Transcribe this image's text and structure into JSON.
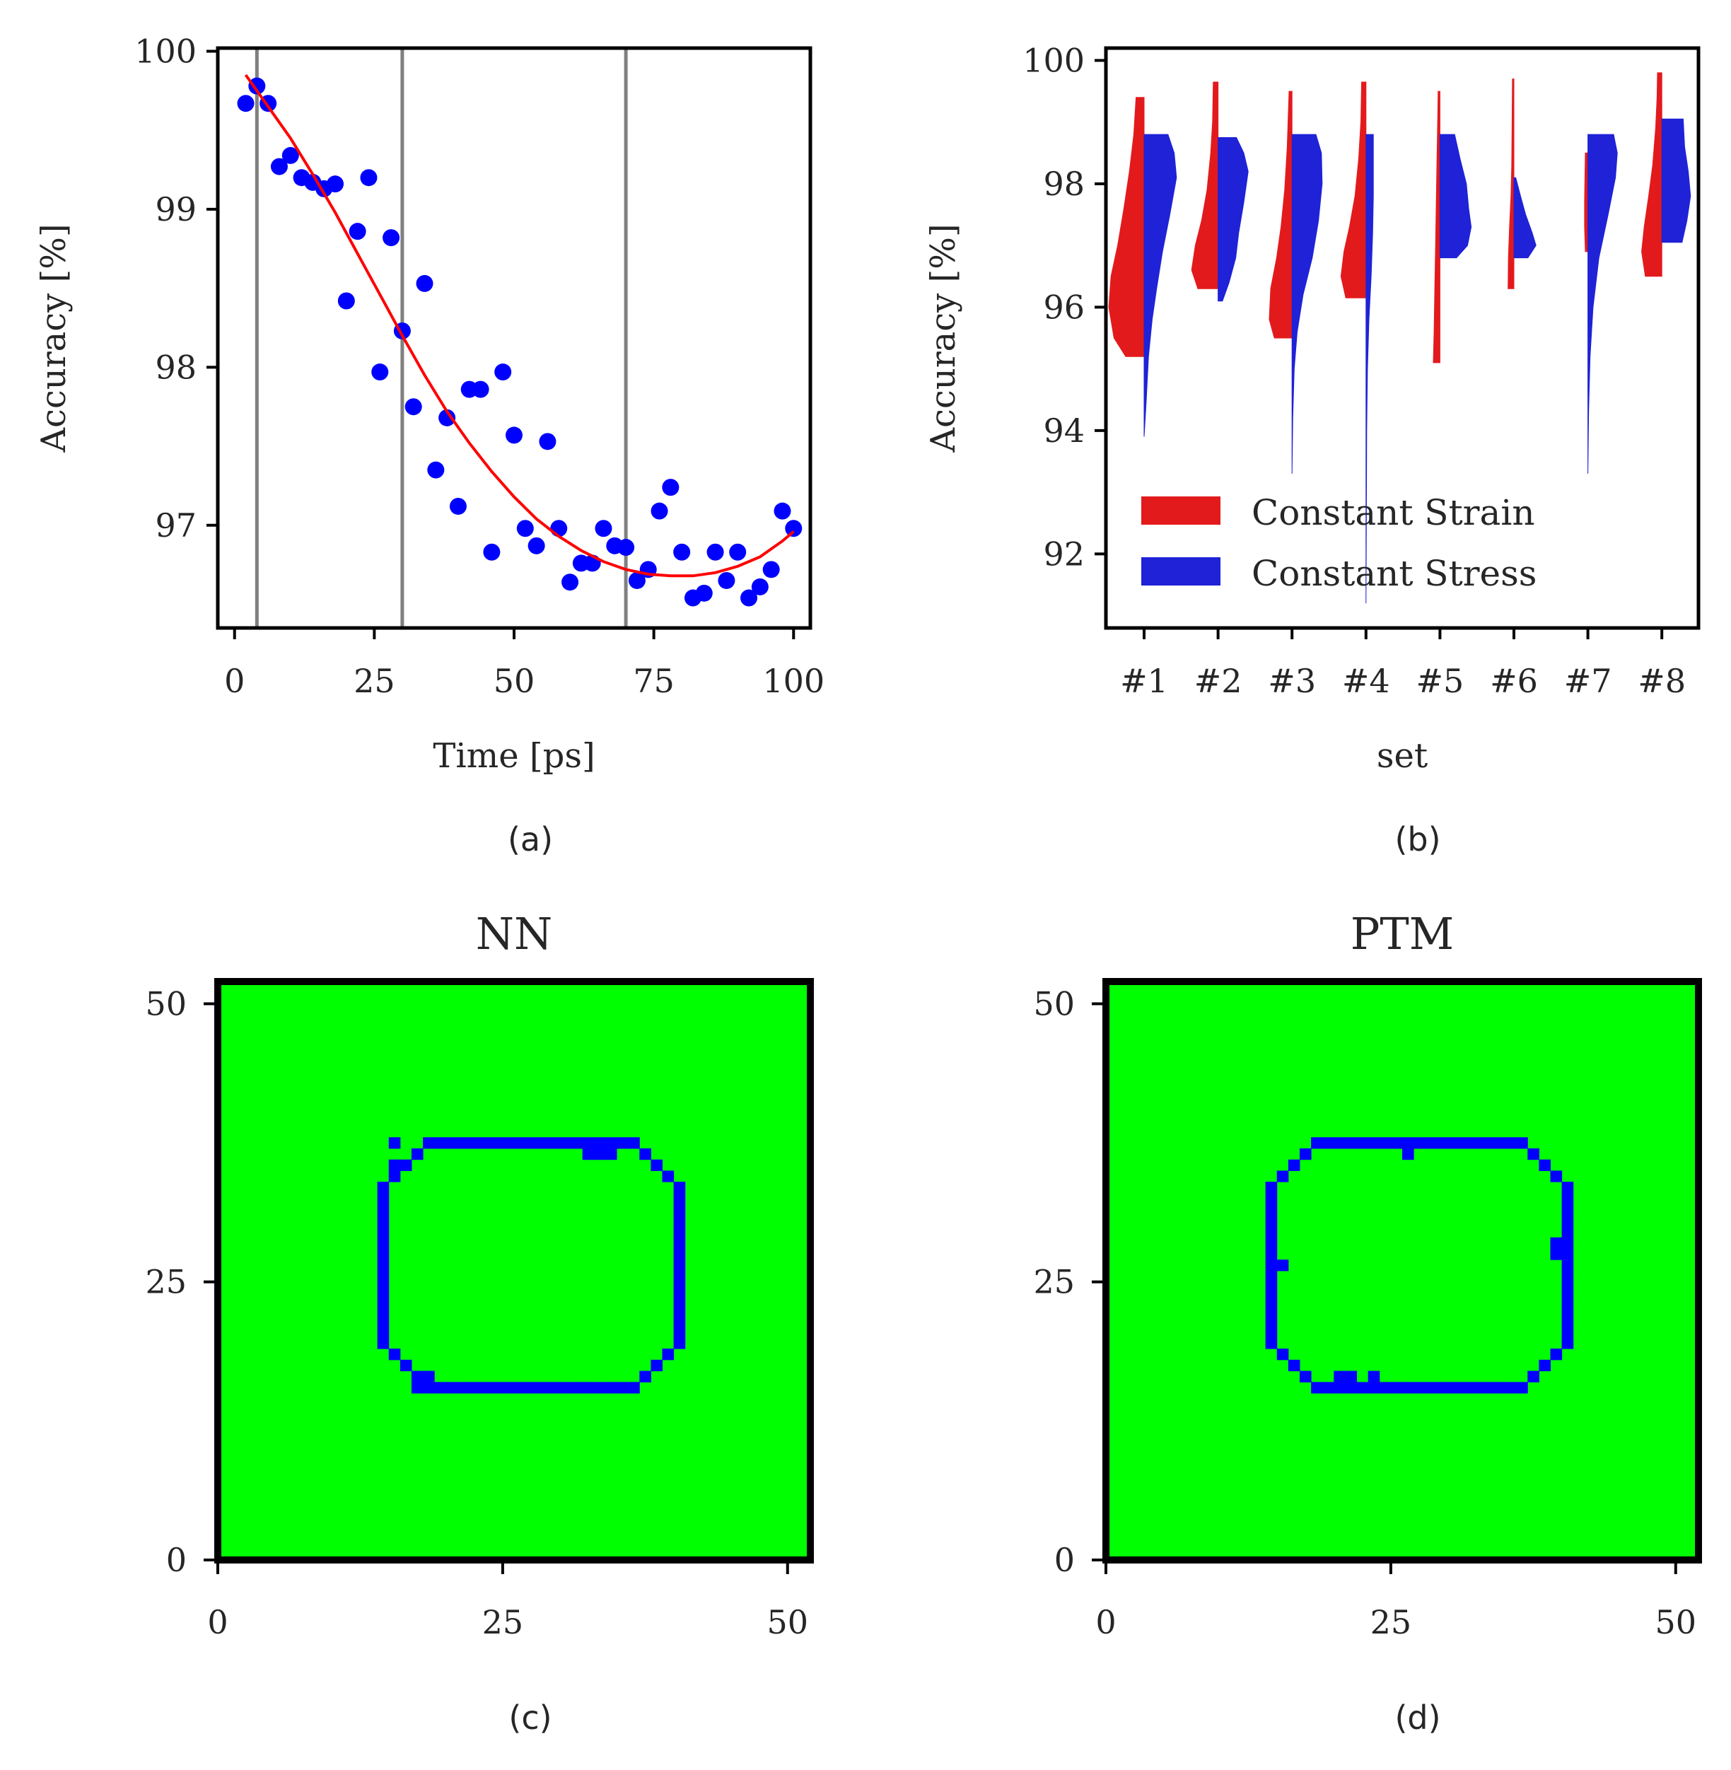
{
  "chart_data": [
    {
      "id": "a",
      "type": "scatter",
      "caption": "(a)",
      "xlabel": "Time [ps]",
      "ylabel": "Accuracy [%]",
      "xlim": [
        -3,
        103
      ],
      "ylim": [
        96.35,
        100.02
      ],
      "xticks": [
        "0",
        "25",
        "50",
        "75",
        "100"
      ],
      "yticks": [
        "97",
        "98",
        "99",
        "100"
      ],
      "vlines": [
        4,
        30,
        70
      ],
      "points": {
        "x": [
          2,
          4,
          6,
          8,
          10,
          12,
          14,
          16,
          18,
          20,
          22,
          24,
          26,
          28,
          30,
          32,
          34,
          36,
          38,
          40,
          42,
          44,
          46,
          48,
          50,
          52,
          54,
          56,
          58,
          60,
          62,
          64,
          66,
          68,
          70,
          72,
          74,
          76,
          78,
          80,
          82,
          84,
          86,
          88,
          90,
          92,
          94,
          96,
          98,
          100
        ],
        "y": [
          99.67,
          99.78,
          99.67,
          99.27,
          99.34,
          99.2,
          99.17,
          99.13,
          99.16,
          98.42,
          98.86,
          99.2,
          97.97,
          98.82,
          98.23,
          97.75,
          98.53,
          97.35,
          97.68,
          97.12,
          97.86,
          97.86,
          96.83,
          97.97,
          97.57,
          96.98,
          96.87,
          97.53,
          96.98,
          96.64,
          96.76,
          96.76,
          96.98,
          96.87,
          96.86,
          96.65,
          96.72,
          97.09,
          97.24,
          96.83,
          96.54,
          96.57,
          96.83,
          96.65,
          96.83,
          96.54,
          96.61,
          96.72,
          97.09,
          96.98
        ]
      },
      "fit": {
        "x": [
          2,
          6,
          10,
          14,
          18,
          22,
          26,
          30,
          34,
          38,
          42,
          46,
          50,
          54,
          58,
          62,
          66,
          70,
          74,
          78,
          82,
          86,
          90,
          94,
          98,
          100
        ],
        "y": [
          99.85,
          99.65,
          99.45,
          99.22,
          98.98,
          98.72,
          98.46,
          98.2,
          97.95,
          97.72,
          97.52,
          97.34,
          97.18,
          97.04,
          96.93,
          96.84,
          96.77,
          96.72,
          96.69,
          96.68,
          96.68,
          96.7,
          96.74,
          96.8,
          96.9,
          96.96
        ]
      }
    },
    {
      "id": "b",
      "type": "violin",
      "caption": "(b)",
      "xlabel": "set",
      "ylabel": "Accuracy [%]",
      "ylim": [
        90.8,
        100.2
      ],
      "yticks": [
        "92",
        "94",
        "96",
        "98",
        "100"
      ],
      "categories": [
        "#1",
        "#2",
        "#3",
        "#4",
        "#5",
        "#6",
        "#7",
        "#8"
      ],
      "series": [
        {
          "name": "Constant Strain",
          "color": "#e31a1c",
          "side": "left",
          "violins": [
            {
              "lo": 95.2,
              "hi": 99.4,
              "profile": [
                [
                  95.2,
                  0.5
                ],
                [
                  95.5,
                  0.82
                ],
                [
                  96.0,
                  0.96
                ],
                [
                  96.5,
                  0.9
                ],
                [
                  97.0,
                  0.72
                ],
                [
                  97.6,
                  0.55
                ],
                [
                  98.2,
                  0.4
                ],
                [
                  98.8,
                  0.28
                ],
                [
                  99.4,
                  0.22
                ]
              ]
            },
            {
              "lo": 96.3,
              "hi": 99.65,
              "profile": [
                [
                  96.3,
                  0.55
                ],
                [
                  96.6,
                  0.72
                ],
                [
                  97.0,
                  0.62
                ],
                [
                  97.4,
                  0.45
                ],
                [
                  97.9,
                  0.3
                ],
                [
                  98.5,
                  0.2
                ],
                [
                  99.0,
                  0.15
                ],
                [
                  99.65,
                  0.13
                ]
              ]
            },
            {
              "lo": 95.5,
              "hi": 99.5,
              "profile": [
                [
                  95.5,
                  0.48
                ],
                [
                  95.8,
                  0.62
                ],
                [
                  96.3,
                  0.58
                ],
                [
                  96.8,
                  0.42
                ],
                [
                  97.3,
                  0.3
                ],
                [
                  97.9,
                  0.2
                ],
                [
                  98.6,
                  0.13
                ],
                [
                  99.5,
                  0.08
                ]
              ]
            },
            {
              "lo": 96.15,
              "hi": 99.65,
              "profile": [
                [
                  96.15,
                  0.55
                ],
                [
                  96.5,
                  0.68
                ],
                [
                  96.9,
                  0.6
                ],
                [
                  97.3,
                  0.45
                ],
                [
                  97.8,
                  0.3
                ],
                [
                  98.4,
                  0.2
                ],
                [
                  99.0,
                  0.14
                ],
                [
                  99.65,
                  0.12
                ]
              ]
            },
            {
              "lo": 95.1,
              "hi": 99.5,
              "profile": [
                [
                  95.1,
                  0.18
                ],
                [
                  95.6,
                  0.16
                ],
                [
                  96.3,
                  0.14
                ],
                [
                  97.0,
                  0.12
                ],
                [
                  97.7,
                  0.1
                ],
                [
                  98.4,
                  0.08
                ],
                [
                  99.1,
                  0.06
                ],
                [
                  99.5,
                  0.05
                ]
              ]
            },
            {
              "lo": 96.3,
              "hi": 99.7,
              "profile": [
                [
                  96.3,
                  0.16
                ],
                [
                  96.8,
                  0.15
                ],
                [
                  97.3,
                  0.12
                ],
                [
                  97.8,
                  0.08
                ],
                [
                  98.3,
                  0.06
                ],
                [
                  99.0,
                  0.05
                ],
                [
                  99.7,
                  0.04
                ]
              ]
            },
            {
              "lo": 96.9,
              "hi": 98.5,
              "profile": [
                [
                  96.9,
                  0.07
                ],
                [
                  97.3,
                  0.09
                ],
                [
                  97.7,
                  0.09
                ],
                [
                  98.1,
                  0.08
                ],
                [
                  98.5,
                  0.07
                ]
              ]
            },
            {
              "lo": 96.5,
              "hi": 99.8,
              "profile": [
                [
                  96.5,
                  0.45
                ],
                [
                  96.9,
                  0.55
                ],
                [
                  97.3,
                  0.48
                ],
                [
                  97.8,
                  0.36
                ],
                [
                  98.3,
                  0.25
                ],
                [
                  98.9,
                  0.17
                ],
                [
                  99.4,
                  0.13
                ],
                [
                  99.8,
                  0.12
                ]
              ]
            }
          ]
        },
        {
          "name": "Constant Stress",
          "color": "#1f22d6",
          "side": "right",
          "violins": [
            {
              "lo": 93.9,
              "hi": 98.8,
              "profile": [
                [
                  93.9,
                  0.0
                ],
                [
                  94.5,
                  0.06
                ],
                [
                  95.2,
                  0.12
                ],
                [
                  95.8,
                  0.22
                ],
                [
                  96.3,
                  0.34
                ],
                [
                  96.9,
                  0.5
                ],
                [
                  97.5,
                  0.7
                ],
                [
                  98.1,
                  0.88
                ],
                [
                  98.5,
                  0.82
                ],
                [
                  98.8,
                  0.65
                ]
              ]
            },
            {
              "lo": 96.1,
              "hi": 98.75,
              "profile": [
                [
                  96.1,
                  0.12
                ],
                [
                  96.4,
                  0.3
                ],
                [
                  96.8,
                  0.48
                ],
                [
                  97.2,
                  0.56
                ],
                [
                  97.7,
                  0.7
                ],
                [
                  98.2,
                  0.82
                ],
                [
                  98.5,
                  0.7
                ],
                [
                  98.75,
                  0.5
                ]
              ]
            },
            {
              "lo": 93.3,
              "hi": 98.8,
              "profile": [
                [
                  93.3,
                  0.0
                ],
                [
                  94.2,
                  0.02
                ],
                [
                  95.0,
                  0.06
                ],
                [
                  95.6,
                  0.14
                ],
                [
                  96.2,
                  0.3
                ],
                [
                  96.8,
                  0.55
                ],
                [
                  97.4,
                  0.72
                ],
                [
                  98.0,
                  0.82
                ],
                [
                  98.5,
                  0.8
                ],
                [
                  98.8,
                  0.65
                ]
              ]
            },
            {
              "lo": 91.2,
              "hi": 98.8,
              "profile": [
                [
                  91.2,
                  0.0
                ],
                [
                  92.5,
                  0.01
                ],
                [
                  94.0,
                  0.02
                ],
                [
                  95.0,
                  0.04
                ],
                [
                  95.8,
                  0.08
                ],
                [
                  96.5,
                  0.14
                ],
                [
                  97.2,
                  0.18
                ],
                [
                  97.8,
                  0.2
                ],
                [
                  98.3,
                  0.2
                ],
                [
                  98.8,
                  0.2
                ]
              ]
            },
            {
              "lo": 96.8,
              "hi": 98.8,
              "profile": [
                [
                  96.8,
                  0.45
                ],
                [
                  97.0,
                  0.75
                ],
                [
                  97.3,
                  0.85
                ],
                [
                  97.6,
                  0.78
                ],
                [
                  98.0,
                  0.72
                ],
                [
                  98.4,
                  0.55
                ],
                [
                  98.8,
                  0.4
                ]
              ]
            },
            {
              "lo": 96.8,
              "hi": 98.1,
              "profile": [
                [
                  96.8,
                  0.38
                ],
                [
                  97.0,
                  0.6
                ],
                [
                  97.2,
                  0.5
                ],
                [
                  97.5,
                  0.32
                ],
                [
                  97.8,
                  0.18
                ],
                [
                  98.1,
                  0.05
                ]
              ]
            },
            {
              "lo": 93.3,
              "hi": 98.8,
              "profile": [
                [
                  93.3,
                  0.0
                ],
                [
                  94.3,
                  0.02
                ],
                [
                  95.2,
                  0.06
                ],
                [
                  96.0,
                  0.14
                ],
                [
                  96.8,
                  0.3
                ],
                [
                  97.5,
                  0.55
                ],
                [
                  98.1,
                  0.75
                ],
                [
                  98.5,
                  0.8
                ],
                [
                  98.8,
                  0.7
                ]
              ]
            },
            {
              "lo": 97.05,
              "hi": 99.05,
              "profile": [
                [
                  97.05,
                  0.55
                ],
                [
                  97.4,
                  0.68
                ],
                [
                  97.8,
                  0.78
                ],
                [
                  98.2,
                  0.72
                ],
                [
                  98.6,
                  0.62
                ],
                [
                  99.05,
                  0.58
                ]
              ]
            }
          ]
        }
      ],
      "legend": [
        "Constant Strain",
        "Constant Stress"
      ],
      "legend_loc": "lower-left"
    },
    {
      "id": "c",
      "type": "heatmap",
      "title": "NN",
      "caption": "(c)",
      "xticks": [
        "0",
        "25",
        "50"
      ],
      "yticks": [
        "0",
        "25",
        "50"
      ],
      "xlim": [
        0,
        52
      ],
      "ylim": [
        0,
        52
      ],
      "background": "#00ff00",
      "ring_color": "#0000ff",
      "ring": {
        "x0": 14,
        "x1": 40,
        "y0": 15,
        "y1": 37,
        "corner": 4
      }
    },
    {
      "id": "d",
      "type": "heatmap",
      "title": "PTM",
      "caption": "(d)",
      "xticks": [
        "0",
        "25",
        "50"
      ],
      "yticks": [
        "0",
        "25",
        "50"
      ],
      "xlim": [
        0,
        52
      ],
      "ylim": [
        0,
        52
      ],
      "background": "#00ff00",
      "ring_color": "#0000ff",
      "ring": {
        "x0": 14,
        "x1": 40,
        "y0": 15,
        "y1": 37,
        "corner": 4
      }
    }
  ]
}
